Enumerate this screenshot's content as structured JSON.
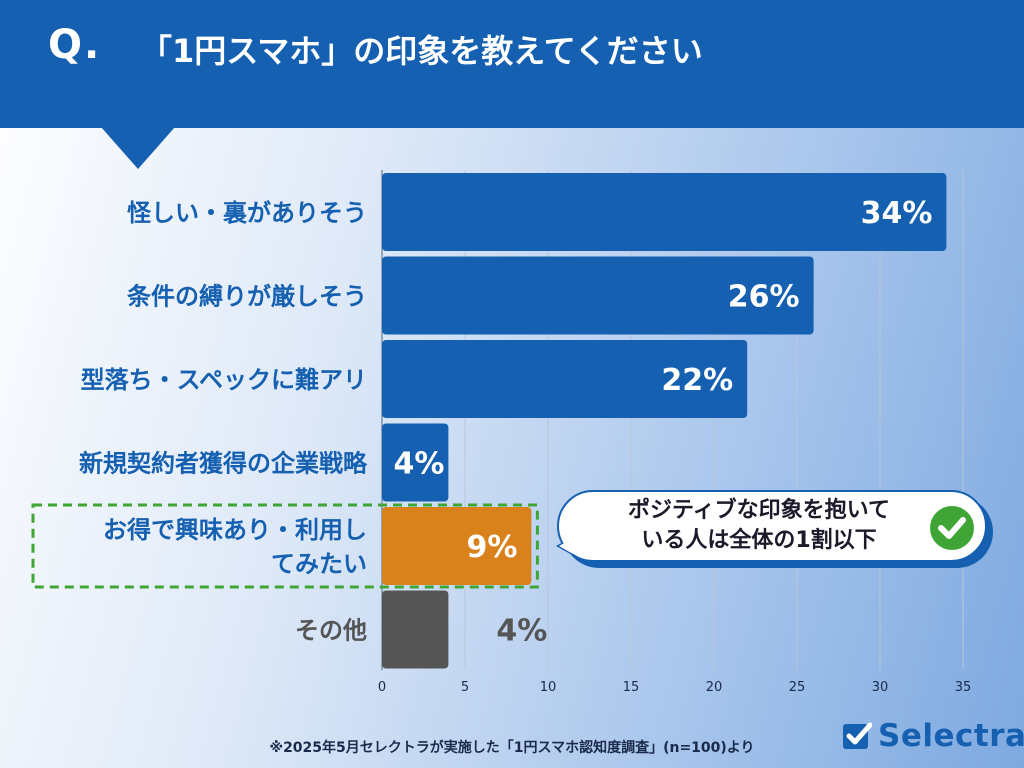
{
  "header": {
    "q_mark": "Q.",
    "title": "「1円スマホ」の印象を教えてください"
  },
  "chart_data": {
    "type": "bar",
    "orientation": "horizontal",
    "categories": [
      "怪しい・裏がありそう",
      "条件の縛りが厳しそう",
      "型落ち・スペックに難アリ",
      "新規契約者獲得の企業戦略",
      "お得で興味あり・利用してみたい",
      "その他"
    ],
    "category_lines": [
      [
        "怪しい・裏がありそう"
      ],
      [
        "条件の縛りが厳しそう"
      ],
      [
        "型落ち・スペックに難アリ"
      ],
      [
        "新規契約者獲得の企業戦略"
      ],
      [
        "お得で興味あり・利用し",
        "てみたい"
      ],
      [
        "その他"
      ]
    ],
    "values": [
      34,
      26,
      22,
      4,
      9,
      4
    ],
    "value_labels": [
      "34%",
      "26%",
      "22%",
      "4%",
      "9%",
      "4%"
    ],
    "bar_colors": [
      "#1560b0",
      "#1560b0",
      "#1560b0",
      "#1560b0",
      "#d9821b",
      "#555555"
    ],
    "label_color": "#1560b0",
    "other_label_color": "#555555",
    "highlight_index": 4,
    "highlight_color": "#3fa535",
    "xlim": [
      0,
      35
    ],
    "xticks": [
      0,
      5,
      10,
      15,
      20,
      25,
      30,
      35
    ],
    "xtick_labels": [
      "0",
      "5",
      "10",
      "15",
      "20",
      "25",
      "30",
      "35"
    ],
    "grid": true
  },
  "callout": {
    "line1": "ポジティブな印象を抱いて",
    "line2": "いる人は全体の1割以下",
    "check_color": "#3fa535"
  },
  "footnote": "※2025年5月セレクトラが実施した「1円スマホ認知度調査」(n=100)より",
  "logo": {
    "text": "Selectra",
    "color": "#1560b0"
  }
}
